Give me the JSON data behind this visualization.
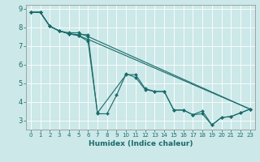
{
  "xlabel": "Humidex (Indice chaleur)",
  "bg_color": "#cce8e8",
  "line_color": "#1a6b6b",
  "grid_color": "#ffffff",
  "xlim": [
    -0.5,
    23.5
  ],
  "ylim": [
    2.5,
    9.2
  ],
  "xticks": [
    0,
    1,
    2,
    3,
    4,
    5,
    6,
    7,
    8,
    9,
    10,
    11,
    12,
    13,
    14,
    15,
    16,
    17,
    18,
    19,
    20,
    21,
    22,
    23
  ],
  "yticks": [
    3,
    4,
    5,
    6,
    7,
    8,
    9
  ],
  "lines": [
    {
      "x": [
        0,
        1,
        2,
        3,
        4,
        5,
        6,
        7,
        10,
        11,
        12,
        13,
        14,
        15,
        16,
        17,
        18,
        19,
        20,
        21,
        22,
        23
      ],
      "y": [
        8.8,
        8.8,
        8.05,
        7.8,
        7.65,
        7.55,
        7.25,
        3.4,
        5.45,
        5.45,
        4.7,
        4.55,
        4.55,
        3.55,
        3.55,
        3.3,
        3.35,
        2.75,
        3.15,
        3.2,
        3.4,
        3.6
      ]
    },
    {
      "x": [
        0,
        1,
        2,
        3,
        4,
        5,
        6,
        7,
        8,
        9,
        10,
        11,
        12,
        13,
        14,
        15,
        16,
        17,
        18,
        19,
        20,
        21,
        22,
        23
      ],
      "y": [
        8.8,
        8.8,
        8.05,
        7.8,
        7.65,
        7.6,
        7.6,
        3.35,
        3.35,
        4.35,
        5.5,
        5.3,
        4.65,
        4.55,
        4.55,
        3.55,
        3.55,
        3.3,
        3.5,
        2.75,
        3.15,
        3.2,
        3.4,
        3.6
      ]
    },
    {
      "x": [
        0,
        1,
        2,
        3,
        4,
        5,
        6,
        23
      ],
      "y": [
        8.8,
        8.8,
        8.05,
        7.8,
        7.65,
        7.55,
        7.35,
        3.6
      ]
    },
    {
      "x": [
        0,
        1,
        2,
        3,
        4,
        5,
        6,
        23
      ],
      "y": [
        8.8,
        8.8,
        8.05,
        7.8,
        7.7,
        7.7,
        7.5,
        3.6
      ]
    }
  ]
}
